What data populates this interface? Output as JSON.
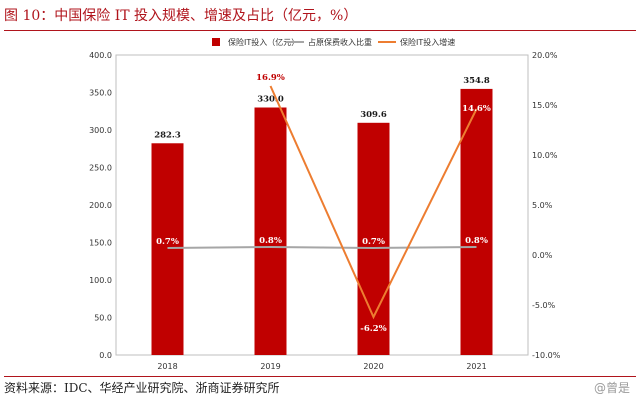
{
  "figure": {
    "title": "图 10：中国保险 IT 投入规模、增速及占比（亿元，%）",
    "source": "资料来源：IDC、华经产业研究院、浙商证券研究所",
    "watermark": "@曾是"
  },
  "colors": {
    "bar": "#c00000",
    "share_line": "#a6a6a6",
    "growth_line": "#ed7d31",
    "title": "#b0141c",
    "label_dark": "#1a1a1a",
    "label_red": "#c00000",
    "label_white": "#ffffff"
  },
  "chart_data": {
    "type": "bar",
    "categories": [
      "2018",
      "2019",
      "2020",
      "2021"
    ],
    "series": [
      {
        "name": "保险IT投入（亿元）",
        "kind": "bar",
        "axis": "left",
        "values": [
          282.3,
          330.0,
          309.6,
          354.8
        ],
        "labels": [
          "282.3",
          "330.0",
          "309.6",
          "354.8"
        ]
      },
      {
        "name": "占原保费收入比重",
        "kind": "line",
        "axis": "right",
        "values": [
          0.7,
          0.8,
          0.7,
          0.8
        ],
        "labels": [
          "0.7%",
          "0.8%",
          "0.7%",
          "0.8%"
        ]
      },
      {
        "name": "保险IT投入增速",
        "kind": "line",
        "axis": "right",
        "values": [
          null,
          16.9,
          -6.2,
          14.6
        ],
        "labels": [
          "",
          "16.9%",
          "-6.2%",
          "14.6%"
        ]
      }
    ],
    "left_axis": {
      "min": 0,
      "max": 400,
      "step": 50,
      "ticks": [
        "0.0",
        "50.0",
        "100.0",
        "150.0",
        "200.0",
        "250.0",
        "300.0",
        "350.0",
        "400.0"
      ]
    },
    "right_axis": {
      "min": -10,
      "max": 20,
      "step": 5,
      "ticks": [
        "-10.0%",
        "-5.0%",
        "0.0%",
        "5.0%",
        "10.0%",
        "15.0%",
        "20.0%"
      ]
    },
    "legend": [
      "保险IT投入（亿元）",
      "占原保费收入比重",
      "保险IT投入增速"
    ],
    "legend_position": "top",
    "grid": false
  }
}
